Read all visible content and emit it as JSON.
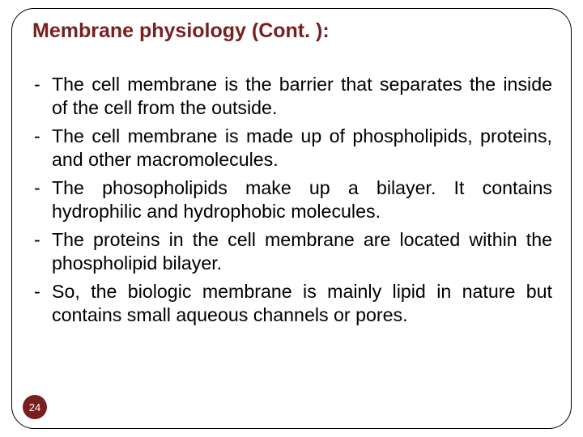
{
  "title": "Membrane physiology (Cont. ):",
  "title_color": "#7a1f1f",
  "title_fontsize": 25,
  "body_fontsize": 23.2,
  "body_color": "#000000",
  "bullet_marker": "-",
  "bullets": [
    "The cell membrane is the barrier that separates the inside of the cell from the outside.",
    "The cell membrane is made up of phospholipids, proteins, and other macromolecules.",
    "The phosopholipids make up a bilayer. It contains hydrophilic and hydrophobic molecules.",
    "The proteins in the cell membrane are located within the phospholipid bilayer.",
    "So, the biologic membrane is mainly lipid in nature but contains small aqueous channels or pores."
  ],
  "page_number": "24",
  "page_badge_bg": "#7a1f1f",
  "page_badge_fg": "#ffffff",
  "frame_border_color": "#000000",
  "frame_border_radius": 28,
  "background_color": "#ffffff",
  "slide_width": 720,
  "slide_height": 540
}
